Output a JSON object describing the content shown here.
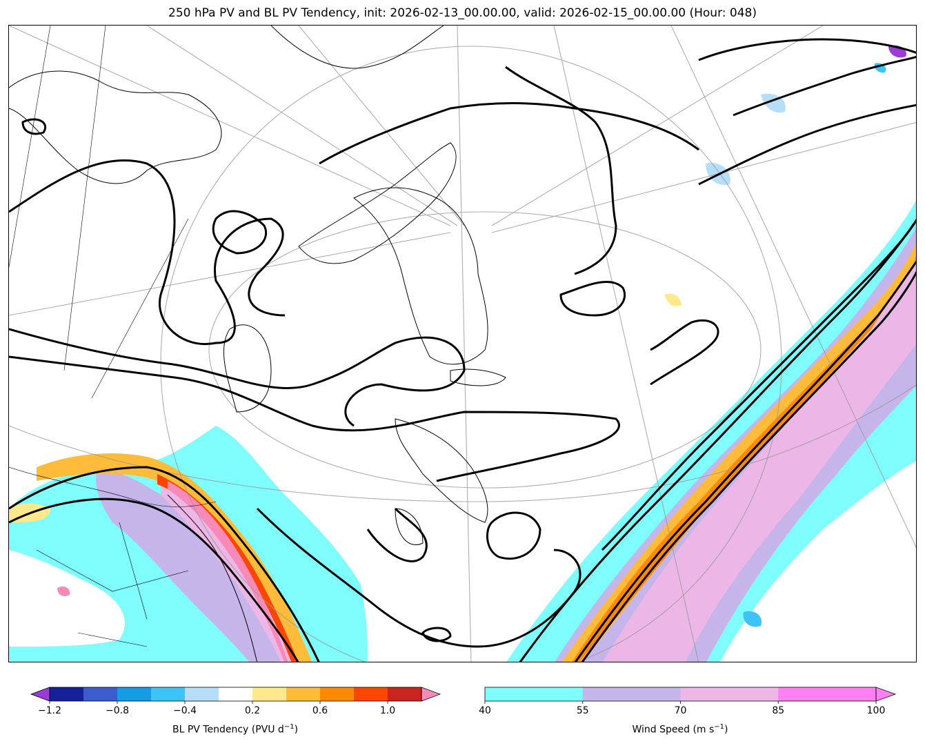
{
  "title": "250 hPa PV and BL PV Tendency, init: 2026-02-13_00.00.00, valid: 2026-02-15_00.00.00 (Hour: 048)",
  "colors": {
    "wind": [
      "#7ffcfc",
      "#c5b5ea",
      "#ecb6e6",
      "#ff80f5"
    ],
    "pv_tendency": [
      "#9b3bd8",
      "#14219b",
      "#3b5bd1",
      "#169ce6",
      "#3dc3f5",
      "#b7def9",
      "#ffffff",
      "#ffe98a",
      "#ffbc3a",
      "#ff8a00",
      "#ff4600",
      "#c9241d",
      "#f78ab9"
    ]
  },
  "pv_colorbar": {
    "label_main": "BL PV Tendency (PVU d",
    "label_exp": "−1",
    "label_end": ")",
    "levels": [
      -1.2,
      -1.0,
      -0.8,
      -0.6,
      -0.4,
      -0.2,
      0.2,
      0.4,
      0.6,
      0.8,
      1.0,
      1.2
    ],
    "ticks": [
      "−1.2",
      "−0.8",
      "−0.4",
      "0.2",
      "0.6",
      "1.0"
    ],
    "tick_levels": [
      -1.2,
      -0.8,
      -0.4,
      0.2,
      0.6,
      1.0
    ]
  },
  "wind_colorbar": {
    "label_main": "Wind Speed (m s",
    "label_exp": "−1",
    "label_end": ")",
    "levels": [
      40,
      55,
      70,
      85,
      100
    ],
    "ticks": [
      "40",
      "55",
      "70",
      "85",
      "100"
    ]
  }
}
